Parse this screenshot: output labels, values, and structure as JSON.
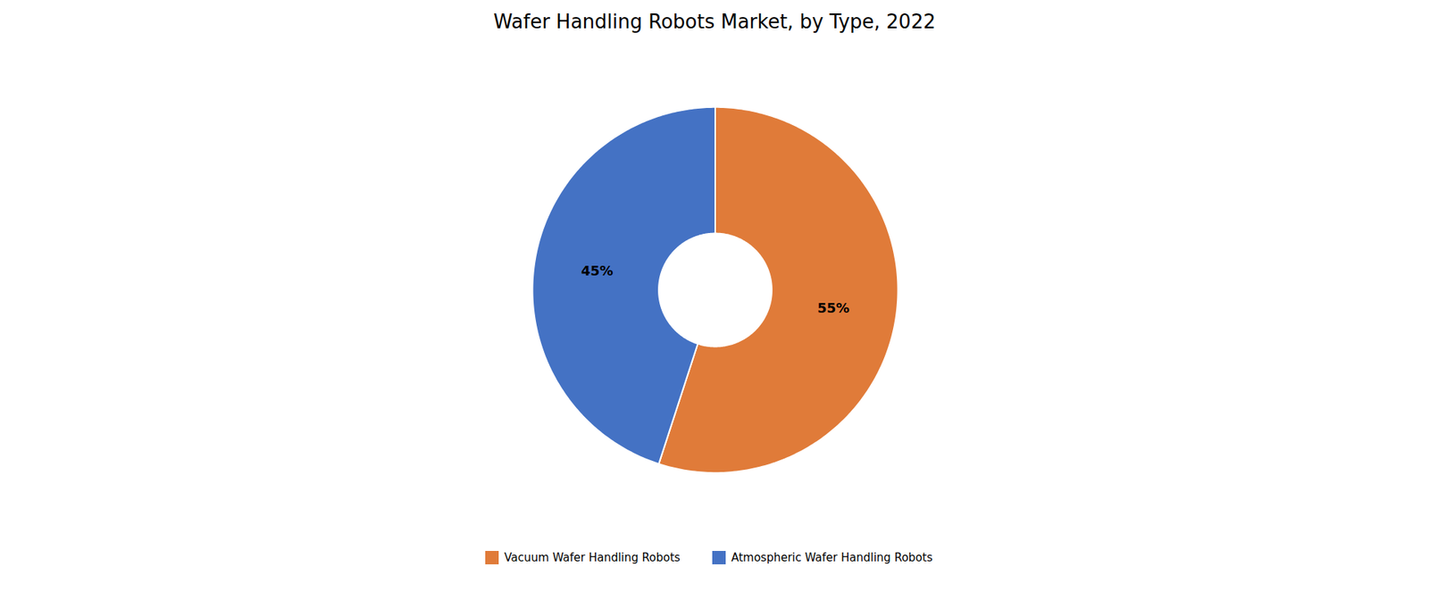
{
  "chart_data": {
    "type": "pie",
    "title": "Wafer Handling Robots Market, by Type, 2022",
    "categories": [
      "Vacuum Wafer Handling Robots",
      "Atmospheric Wafer Handling Robots"
    ],
    "values": [
      55,
      45
    ],
    "value_labels": [
      "55%",
      "45%"
    ],
    "colors": [
      "#E07B39",
      "#4472C4"
    ],
    "data_labels": true,
    "legend": "bottom"
  }
}
